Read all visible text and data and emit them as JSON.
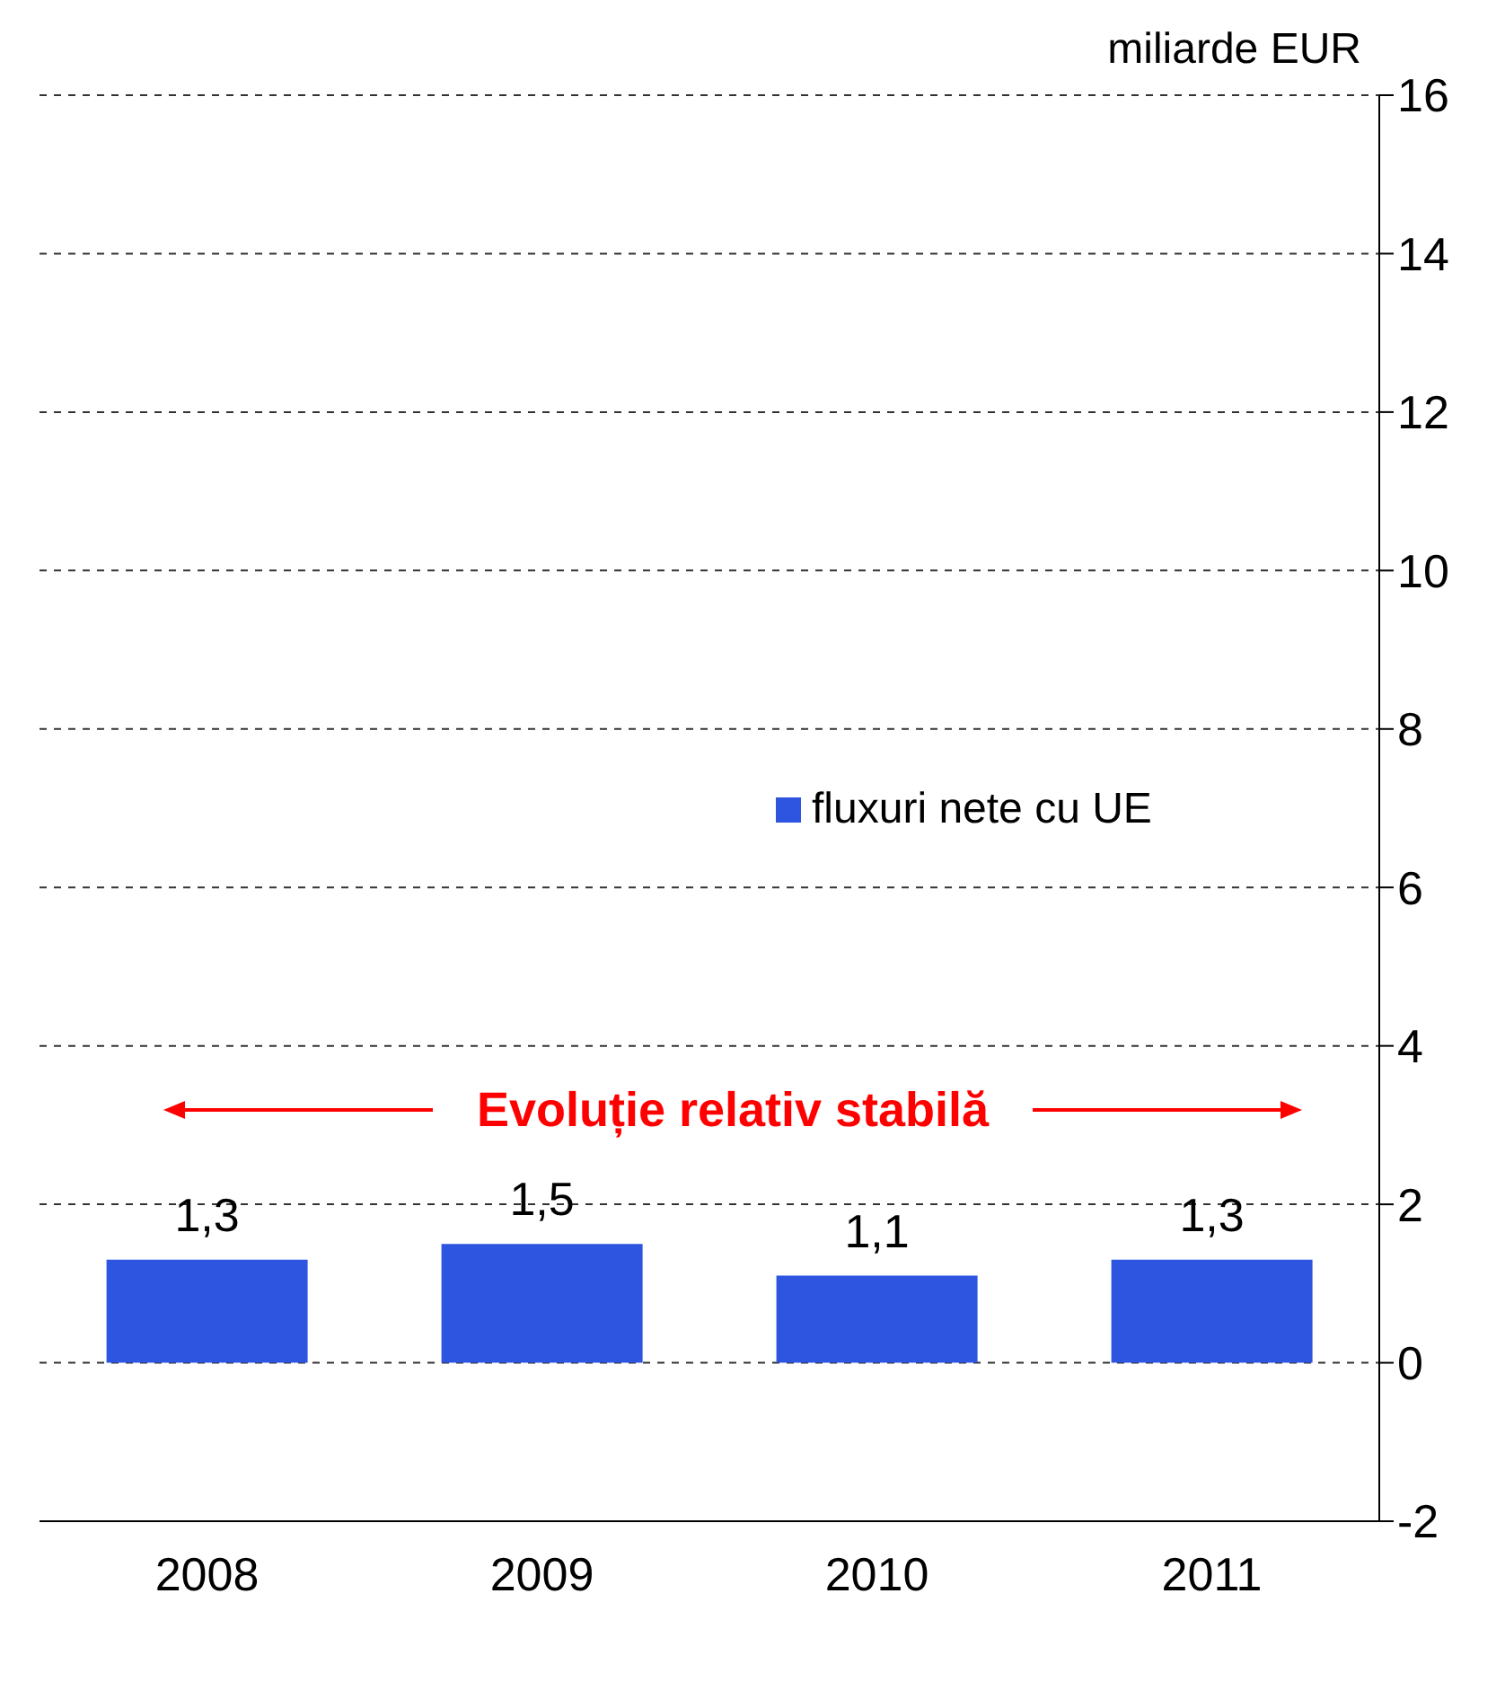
{
  "chart_data": {
    "type": "bar",
    "ylabel": "miliarde EUR",
    "categories": [
      "2008",
      "2009",
      "2010",
      "2011"
    ],
    "series": [
      {
        "name": "fluxuri nete cu UE",
        "color": "#2d55e0",
        "values": [
          1.3,
          1.5,
          1.1,
          1.3
        ],
        "value_labels": [
          "1,3",
          "1,5",
          "1,1",
          "1,3"
        ]
      }
    ],
    "ylim": [
      -2,
      16
    ],
    "yticks": [
      -2,
      0,
      2,
      4,
      6,
      8,
      10,
      12,
      14,
      16
    ],
    "grid": "y",
    "legend": "right",
    "annotations": [
      "Evoluție relativ stabilă"
    ]
  }
}
